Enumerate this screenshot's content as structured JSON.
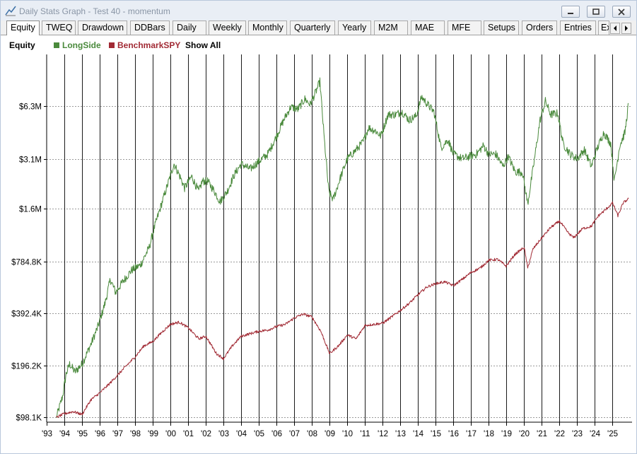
{
  "window": {
    "title": "Daily Stats Graph - Test 40 - momentum"
  },
  "tabs": [
    {
      "label": "Equity",
      "active": true
    },
    {
      "label": "TWEQ"
    },
    {
      "label": "Drawdown"
    },
    {
      "label": "DDBars"
    },
    {
      "label": "Daily"
    },
    {
      "label": "Weekly"
    },
    {
      "label": "Monthly"
    },
    {
      "label": "Quarterly"
    },
    {
      "label": "Yearly"
    },
    {
      "label": "M2M"
    },
    {
      "label": "MAE"
    },
    {
      "label": "MFE"
    },
    {
      "label": "Setups"
    },
    {
      "label": "Orders"
    },
    {
      "label": "Entries"
    },
    {
      "label": "Ex"
    }
  ],
  "legend": {
    "title": "Equity",
    "show_all": "Show All"
  },
  "chart_data": {
    "type": "line",
    "title": "",
    "xlabel": "",
    "ylabel": "",
    "y_scale": "log",
    "ylim": [
      92000,
      12500000
    ],
    "xlim": [
      1993.0,
      2026.1
    ],
    "grid": {
      "vertical": true,
      "horizontal_dashed": true
    },
    "y_ticks": [
      {
        "value": 98100,
        "label": "$98.1K"
      },
      {
        "value": 196200,
        "label": "$196.2K"
      },
      {
        "value": 392400,
        "label": "$392.4K"
      },
      {
        "value": 784800,
        "label": "$784.8K"
      },
      {
        "value": 1600000,
        "label": "$1.6M"
      },
      {
        "value": 3100000,
        "label": "$3.1M"
      },
      {
        "value": 6300000,
        "label": "$6.3M"
      }
    ],
    "x_ticks": [
      "'93",
      "'94",
      "'95",
      "'96",
      "'97",
      "'98",
      "'99",
      "'00",
      "'01",
      "'02",
      "'03",
      "'04",
      "'05",
      "'06",
      "'07",
      "'08",
      "'09",
      "'10",
      "'11",
      "'12",
      "'13",
      "'14",
      "'15",
      "'16",
      "'17",
      "'18",
      "'19",
      "'20",
      "'21",
      "'22",
      "'23",
      "'24",
      "'25"
    ],
    "series": [
      {
        "name": "LongSide",
        "color": "#4a8a3c",
        "points": [
          [
            1993.55,
            98000
          ],
          [
            1993.9,
            130000
          ],
          [
            1994.1,
            175000
          ],
          [
            1994.3,
            200000
          ],
          [
            1994.6,
            180000
          ],
          [
            1995.0,
            200000
          ],
          [
            1995.5,
            260000
          ],
          [
            1995.9,
            330000
          ],
          [
            1996.3,
            450000
          ],
          [
            1996.6,
            620000
          ],
          [
            1996.9,
            520000
          ],
          [
            1997.3,
            600000
          ],
          [
            1997.8,
            700000
          ],
          [
            1998.3,
            750000
          ],
          [
            1998.8,
            950000
          ],
          [
            1999.1,
            1250000
          ],
          [
            1999.5,
            1700000
          ],
          [
            1999.9,
            2300000
          ],
          [
            2000.2,
            2900000
          ],
          [
            2000.5,
            2500000
          ],
          [
            2000.8,
            2100000
          ],
          [
            2001.2,
            2450000
          ],
          [
            2001.6,
            2000000
          ],
          [
            2001.8,
            2300000
          ],
          [
            2002.1,
            2300000
          ],
          [
            2002.5,
            2000000
          ],
          [
            2002.8,
            1750000
          ],
          [
            2003.2,
            2000000
          ],
          [
            2003.6,
            2500000
          ],
          [
            2004.0,
            2900000
          ],
          [
            2004.5,
            2700000
          ],
          [
            2005.0,
            3000000
          ],
          [
            2005.5,
            3300000
          ],
          [
            2006.0,
            4200000
          ],
          [
            2006.4,
            5200000
          ],
          [
            2006.8,
            6200000
          ],
          [
            2007.2,
            6000000
          ],
          [
            2007.6,
            6900000
          ],
          [
            2007.9,
            6400000
          ],
          [
            2008.2,
            7500000
          ],
          [
            2008.45,
            8700000
          ],
          [
            2008.7,
            4000000
          ],
          [
            2008.95,
            2000000
          ],
          [
            2009.2,
            1800000
          ],
          [
            2009.6,
            2400000
          ],
          [
            2010.0,
            3100000
          ],
          [
            2010.5,
            3500000
          ],
          [
            2010.9,
            3900000
          ],
          [
            2011.2,
            4700000
          ],
          [
            2011.6,
            4500000
          ],
          [
            2011.9,
            4200000
          ],
          [
            2012.3,
            5600000
          ],
          [
            2012.7,
            5600000
          ],
          [
            2013.1,
            5800000
          ],
          [
            2013.5,
            5200000
          ],
          [
            2013.9,
            5500000
          ],
          [
            2014.2,
            7100000
          ],
          [
            2014.6,
            6300000
          ],
          [
            2014.9,
            5800000
          ],
          [
            2015.3,
            3600000
          ],
          [
            2015.7,
            4000000
          ],
          [
            2016.0,
            3300000
          ],
          [
            2016.5,
            3100000
          ],
          [
            2016.9,
            3200000
          ],
          [
            2017.3,
            3300000
          ],
          [
            2017.7,
            3700000
          ],
          [
            2018.0,
            3300000
          ],
          [
            2018.4,
            3300000
          ],
          [
            2018.8,
            2800000
          ],
          [
            2019.1,
            3200000
          ],
          [
            2019.5,
            2600000
          ],
          [
            2019.9,
            2600000
          ],
          [
            2020.2,
            1700000
          ],
          [
            2020.5,
            2700000
          ],
          [
            2020.9,
            5200000
          ],
          [
            2021.2,
            6700000
          ],
          [
            2021.5,
            5600000
          ],
          [
            2021.9,
            5700000
          ],
          [
            2022.2,
            3800000
          ],
          [
            2022.6,
            3300000
          ],
          [
            2023.0,
            3100000
          ],
          [
            2023.4,
            3500000
          ],
          [
            2023.8,
            2800000
          ],
          [
            2024.1,
            3500000
          ],
          [
            2024.5,
            4400000
          ],
          [
            2024.9,
            3800000
          ],
          [
            2025.1,
            2300000
          ],
          [
            2025.4,
            3700000
          ],
          [
            2025.7,
            4400000
          ],
          [
            2025.9,
            6500000
          ]
        ]
      },
      {
        "name": "BenchmarkSPY",
        "color": "#a12a34",
        "points": [
          [
            1993.55,
            98000
          ],
          [
            1994.0,
            103000
          ],
          [
            1994.5,
            106000
          ],
          [
            1995.0,
            102000
          ],
          [
            1995.5,
            124000
          ],
          [
            1996.0,
            136000
          ],
          [
            1996.5,
            152000
          ],
          [
            1997.0,
            172000
          ],
          [
            1997.5,
            195000
          ],
          [
            1998.0,
            220000
          ],
          [
            1998.5,
            255000
          ],
          [
            1999.0,
            270000
          ],
          [
            1999.5,
            305000
          ],
          [
            2000.0,
            340000
          ],
          [
            2000.5,
            350000
          ],
          [
            2001.0,
            325000
          ],
          [
            2001.6,
            280000
          ],
          [
            2002.0,
            290000
          ],
          [
            2002.6,
            230000
          ],
          [
            2003.0,
            215000
          ],
          [
            2003.5,
            255000
          ],
          [
            2004.0,
            290000
          ],
          [
            2004.5,
            300000
          ],
          [
            2005.0,
            310000
          ],
          [
            2005.5,
            315000
          ],
          [
            2006.0,
            330000
          ],
          [
            2006.5,
            340000
          ],
          [
            2007.0,
            370000
          ],
          [
            2007.5,
            390000
          ],
          [
            2008.0,
            375000
          ],
          [
            2008.5,
            310000
          ],
          [
            2009.0,
            230000
          ],
          [
            2009.5,
            255000
          ],
          [
            2010.0,
            295000
          ],
          [
            2010.5,
            280000
          ],
          [
            2011.0,
            335000
          ],
          [
            2011.5,
            340000
          ],
          [
            2012.0,
            345000
          ],
          [
            2012.5,
            375000
          ],
          [
            2013.0,
            410000
          ],
          [
            2013.5,
            450000
          ],
          [
            2014.0,
            505000
          ],
          [
            2014.5,
            560000
          ],
          [
            2015.0,
            585000
          ],
          [
            2015.5,
            600000
          ],
          [
            2016.0,
            570000
          ],
          [
            2016.5,
            620000
          ],
          [
            2017.0,
            680000
          ],
          [
            2017.5,
            720000
          ],
          [
            2018.0,
            800000
          ],
          [
            2018.5,
            810000
          ],
          [
            2018.98,
            740000
          ],
          [
            2019.5,
            870000
          ],
          [
            2020.0,
            950000
          ],
          [
            2020.2,
            720000
          ],
          [
            2020.5,
            930000
          ],
          [
            2021.0,
            1080000
          ],
          [
            2021.5,
            1240000
          ],
          [
            2022.0,
            1350000
          ],
          [
            2022.5,
            1150000
          ],
          [
            2022.8,
            1080000
          ],
          [
            2023.3,
            1220000
          ],
          [
            2023.8,
            1260000
          ],
          [
            2024.2,
            1450000
          ],
          [
            2024.6,
            1570000
          ],
          [
            2025.0,
            1720000
          ],
          [
            2025.3,
            1450000
          ],
          [
            2025.6,
            1720000
          ],
          [
            2025.9,
            1820000
          ]
        ]
      }
    ]
  }
}
